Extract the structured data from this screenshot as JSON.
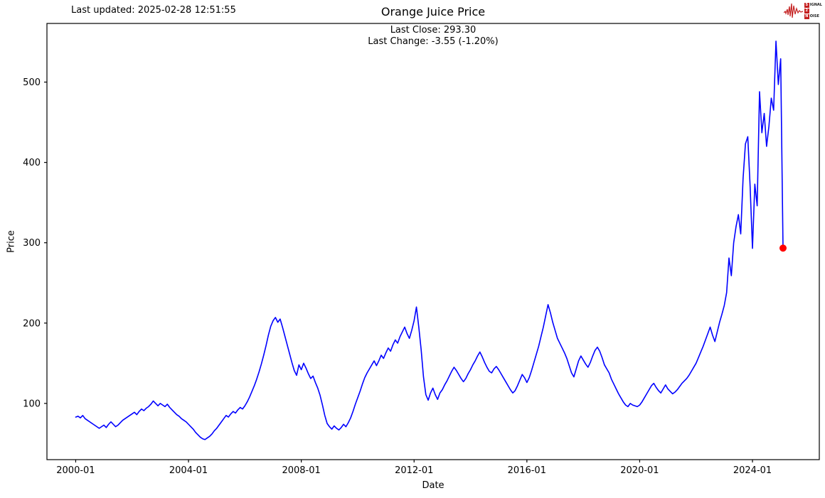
{
  "header": {
    "last_updated": "Last updated: 2025-02-28 12:51:55",
    "title": "Orange Juice Price",
    "last_close": "Last Close: 293.30",
    "last_change": "Last Change: -3.55 (-1.20%)"
  },
  "logo": {
    "name": "Signal 2 Noise",
    "color": "#c42020",
    "line1_box": "S",
    "line1_text": "IGNAL",
    "line2_box": "2",
    "line3_box": "N",
    "line3_text": "OISE"
  },
  "chart_data": {
    "type": "line",
    "title": "Orange Juice Price",
    "xlabel": "Date",
    "ylabel": "Price",
    "grid": false,
    "line_color": "#0000ff",
    "line_width": 1.6,
    "marker_color": "#ff0000",
    "axis_color": "#000000",
    "xlim": [
      1998.98,
      2026.37
    ],
    "ylim": [
      30,
      573
    ],
    "x_ticks": [
      {
        "year": 2000,
        "label": "2000-01"
      },
      {
        "year": 2004,
        "label": "2004-01"
      },
      {
        "year": 2008,
        "label": "2008-01"
      },
      {
        "year": 2012,
        "label": "2012-01"
      },
      {
        "year": 2016,
        "label": "2016-01"
      },
      {
        "year": 2020,
        "label": "2020-01"
      },
      {
        "year": 2024,
        "label": "2024-01"
      }
    ],
    "y_ticks": [
      100,
      200,
      300,
      400,
      500
    ],
    "series": {
      "name": "Orange Juice Price",
      "start": "2000-01",
      "interval": "monthly",
      "values": [
        83,
        84,
        82,
        85,
        81,
        79,
        77,
        75,
        73,
        71,
        69,
        71,
        73,
        70,
        74,
        77,
        74,
        71,
        73,
        76,
        79,
        81,
        83,
        85,
        87,
        89,
        86,
        90,
        93,
        91,
        94,
        96,
        99,
        103,
        100,
        97,
        100,
        98,
        96,
        99,
        95,
        92,
        89,
        86,
        84,
        81,
        79,
        77,
        74,
        71,
        68,
        64,
        61,
        58,
        56,
        55,
        57,
        59,
        62,
        66,
        69,
        73,
        77,
        81,
        85,
        83,
        87,
        90,
        88,
        92,
        95,
        93,
        97,
        102,
        108,
        115,
        122,
        130,
        139,
        149,
        160,
        172,
        185,
        196,
        203,
        207,
        201,
        205,
        195,
        184,
        173,
        162,
        151,
        141,
        135,
        148,
        142,
        150,
        144,
        137,
        131,
        134,
        126,
        119,
        110,
        98,
        85,
        75,
        71,
        68,
        72,
        69,
        67,
        70,
        74,
        71,
        76,
        82,
        90,
        99,
        107,
        115,
        124,
        132,
        138,
        143,
        148,
        153,
        147,
        153,
        160,
        156,
        163,
        169,
        165,
        173,
        179,
        175,
        183,
        189,
        195,
        187,
        181,
        191,
        203,
        220,
        195,
        167,
        133,
        111,
        104,
        113,
        119,
        111,
        105,
        113,
        117,
        123,
        128,
        134,
        140,
        145,
        141,
        136,
        131,
        127,
        131,
        137,
        142,
        148,
        153,
        159,
        164,
        158,
        151,
        145,
        140,
        138,
        143,
        146,
        142,
        137,
        132,
        127,
        122,
        117,
        113,
        116,
        122,
        129,
        136,
        132,
        126,
        132,
        141,
        151,
        161,
        171,
        183,
        195,
        209,
        223,
        213,
        201,
        191,
        181,
        175,
        169,
        163,
        156,
        147,
        138,
        133,
        143,
        153,
        159,
        154,
        149,
        145,
        151,
        159,
        166,
        170,
        165,
        157,
        148,
        143,
        138,
        130,
        124,
        118,
        112,
        107,
        102,
        98,
        96,
        100,
        98,
        97,
        96,
        98,
        102,
        107,
        112,
        117,
        122,
        125,
        120,
        116,
        113,
        118,
        123,
        118,
        115,
        112,
        114,
        117,
        121,
        125,
        128,
        131,
        135,
        140,
        145,
        150,
        157,
        164,
        171,
        179,
        187,
        195,
        185,
        177,
        189,
        201,
        211,
        222,
        238,
        281,
        259,
        300,
        320,
        335,
        311,
        380,
        423,
        432,
        370,
        293,
        373,
        346,
        488,
        437,
        461,
        420,
        445,
        480,
        465,
        551,
        497,
        529,
        293.3
      ]
    },
    "last_point": {
      "date": "2025-02-28",
      "value": 293.3
    }
  }
}
